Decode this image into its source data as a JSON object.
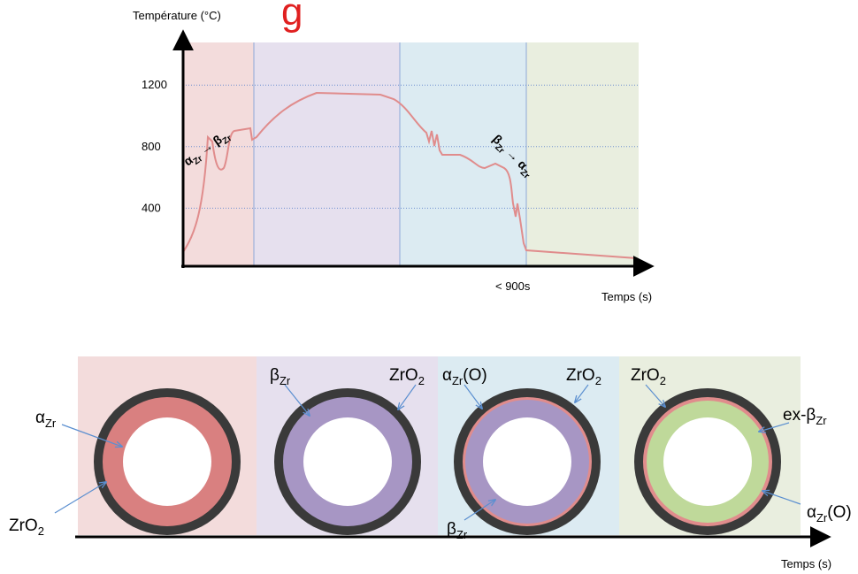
{
  "top_chart": {
    "stray_mark": "g",
    "y_axis_label": "Température (°C)",
    "yticks": [
      400,
      800,
      1200
    ],
    "x_annotation": "< 900s",
    "x_axis_label": "Temps (s)",
    "transition_heating": {
      "from": "α",
      "from_sub": "Zr",
      "to": "β",
      "to_sub": "Zr"
    },
    "transition_cooling": {
      "from": "β",
      "from_sub": "Zr",
      "to": "α",
      "to_sub": "Zr"
    }
  },
  "bottom": {
    "x_axis_label": "Temps (s)",
    "labels": [
      {
        "pre": "α",
        "sub": "Zr"
      },
      {
        "pre": "ZrO",
        "sub": "2"
      },
      {
        "pre": "β",
        "sub": "Zr"
      },
      {
        "pre": "ZrO",
        "sub": "2"
      },
      {
        "pre": "α",
        "sub": "Zr",
        "post": "(O)"
      },
      {
        "pre": "ZrO",
        "sub": "2"
      },
      {
        "pre": "β",
        "sub": "Zr"
      },
      {
        "pre": "ZrO",
        "sub": "2"
      },
      {
        "pre": "ex-β",
        "sub": "Zr"
      },
      {
        "pre": "α",
        "sub": "Zr",
        "post": "(O)"
      }
    ]
  }
}
